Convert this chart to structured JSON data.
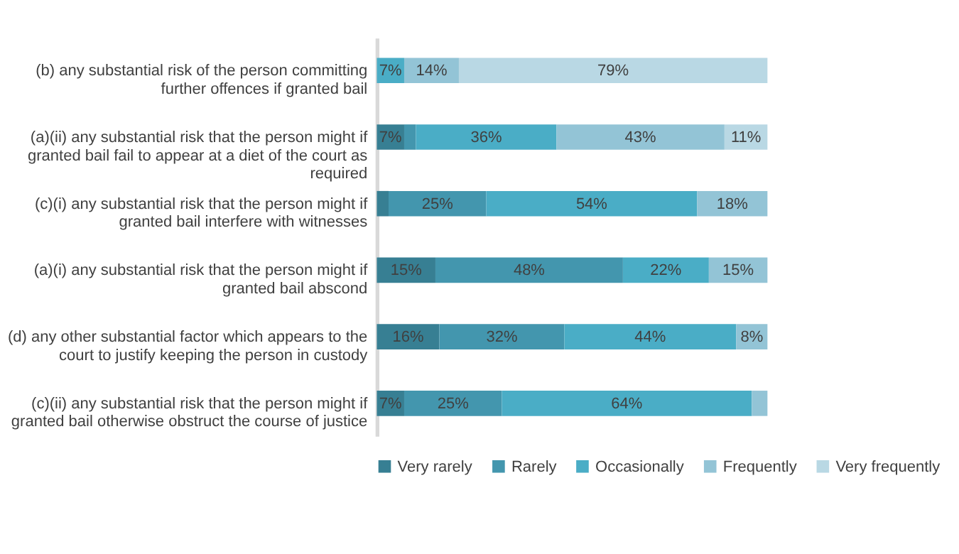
{
  "chart_data": {
    "type": "bar",
    "orientation": "horizontal",
    "stacked": true,
    "categories": [
      "(b) any substantial risk of the person committing further offences if granted bail",
      "(a)(ii) any substantial risk that the person might if granted bail fail to appear at a diet of the court as required",
      "(c)(i) any substantial risk that the person might if granted bail interfere with witnesses",
      "(a)(i) any substantial risk that the person might if granted bail abscond",
      "(d) any other substantial factor which appears to the court to justify keeping the person in custody",
      "(c)(ii) any substantial risk that the person might if granted bail otherwise obstruct the course of justice"
    ],
    "xlim": [
      0,
      100
    ],
    "series": [
      {
        "name": "Very rarely",
        "color": "#377f93",
        "values": [
          0,
          7,
          3,
          15,
          16,
          7
        ],
        "value_labels": [
          null,
          "7%",
          null,
          "15%",
          "16%",
          "7%"
        ]
      },
      {
        "name": "Rarely",
        "color": "#4396ae",
        "values": [
          0,
          3,
          25,
          48,
          32,
          25
        ],
        "value_labels": [
          null,
          null,
          "25%",
          "48%",
          "32%",
          "25%"
        ]
      },
      {
        "name": "Occasionally",
        "color": "#4aadc6",
        "values": [
          7,
          36,
          54,
          22,
          44,
          64
        ],
        "value_labels": [
          "7%",
          "36%",
          "54%",
          "22%",
          "44%",
          "64%"
        ]
      },
      {
        "name": "Frequently",
        "color": "#93c4d6",
        "values": [
          14,
          43,
          18,
          15,
          8,
          4
        ],
        "value_labels": [
          "14%",
          "43%",
          "18%",
          "15%",
          "8%",
          null
        ]
      },
      {
        "name": "Very frequently",
        "color": "#b9d8e4",
        "values": [
          79,
          11,
          0,
          0,
          0,
          0
        ],
        "value_labels": [
          "79%",
          "11%",
          null,
          null,
          null,
          null
        ]
      }
    ],
    "legend": "bottom",
    "tick_labels": "y"
  }
}
